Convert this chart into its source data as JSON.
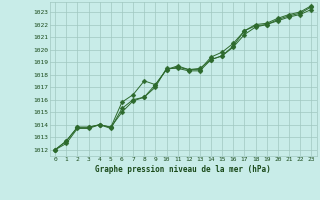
{
  "x": [
    0,
    1,
    2,
    3,
    4,
    5,
    6,
    7,
    8,
    9,
    10,
    11,
    12,
    13,
    14,
    15,
    16,
    17,
    18,
    19,
    20,
    21,
    22,
    23
  ],
  "line1": [
    1012.0,
    1012.7,
    1013.8,
    1013.8,
    1014.0,
    1013.8,
    1015.0,
    1015.9,
    1016.2,
    1017.2,
    1018.4,
    1018.6,
    1018.4,
    1018.4,
    1019.4,
    1019.8,
    1020.5,
    1021.5,
    1022.0,
    1022.1,
    1022.5,
    1022.8,
    1023.0,
    1023.5
  ],
  "line2": [
    1012.0,
    1012.5,
    1013.7,
    1013.7,
    1014.0,
    1013.7,
    1015.3,
    1016.0,
    1016.2,
    1017.0,
    1018.5,
    1018.5,
    1018.3,
    1018.3,
    1019.2,
    1019.5,
    1020.3,
    1021.5,
    1021.9,
    1022.0,
    1022.4,
    1022.7,
    1022.9,
    1023.4
  ],
  "line3": [
    1012.0,
    1012.7,
    1013.8,
    1013.8,
    1014.0,
    1013.8,
    1015.8,
    1016.4,
    1017.5,
    1017.2,
    1018.4,
    1018.7,
    1018.4,
    1018.5,
    1019.2,
    1019.5,
    1020.2,
    1021.2,
    1021.8,
    1022.0,
    1022.3,
    1022.6,
    1022.8,
    1023.2
  ],
  "line_color": "#2d6a2d",
  "bg_color": "#c8ece8",
  "grid_color": "#a0c8c0",
  "xlim": [
    -0.5,
    23.5
  ],
  "ylim": [
    1011.5,
    1023.8
  ],
  "yticks": [
    1012,
    1013,
    1014,
    1015,
    1016,
    1017,
    1018,
    1019,
    1020,
    1021,
    1022,
    1023
  ],
  "xticks": [
    0,
    1,
    2,
    3,
    4,
    5,
    6,
    7,
    8,
    9,
    10,
    11,
    12,
    13,
    14,
    15,
    16,
    17,
    18,
    19,
    20,
    21,
    22,
    23
  ],
  "xlabel": "Graphe pression niveau de la mer (hPa)",
  "title_color": "#1a4a1a",
  "markersize": 2.5,
  "linewidth": 0.7
}
